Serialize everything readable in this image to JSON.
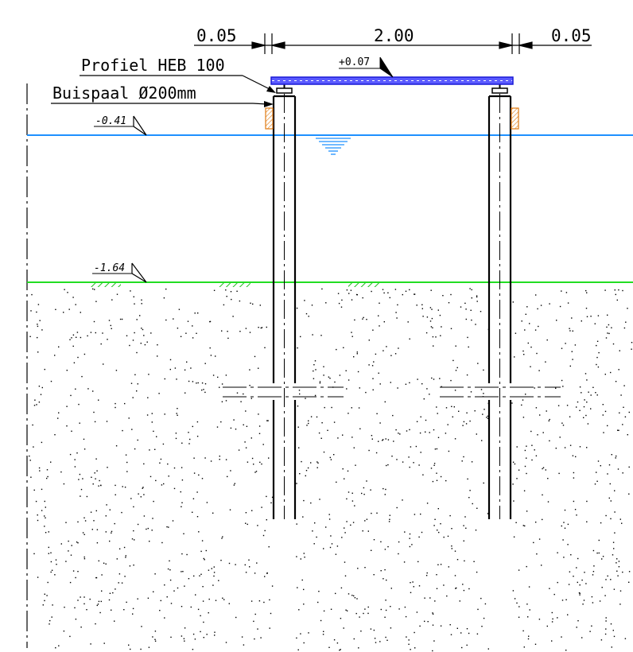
{
  "dimensions": {
    "left": "0.05",
    "center": "2.00",
    "right": "0.05"
  },
  "labels": {
    "beam": "Profiel HEB 100",
    "pile": "Buispaal Ø200mm",
    "beam_level": "+0.07"
  },
  "levels": {
    "water": "-0.41",
    "ground": "-1.64"
  },
  "colors": {
    "water_line": "#1e90ff",
    "ground_line": "#22dd22",
    "beam_fill": "#4a4aff",
    "beam_stroke": "#1a1ad6",
    "bracket": "#e07a10",
    "line": "#000000"
  }
}
